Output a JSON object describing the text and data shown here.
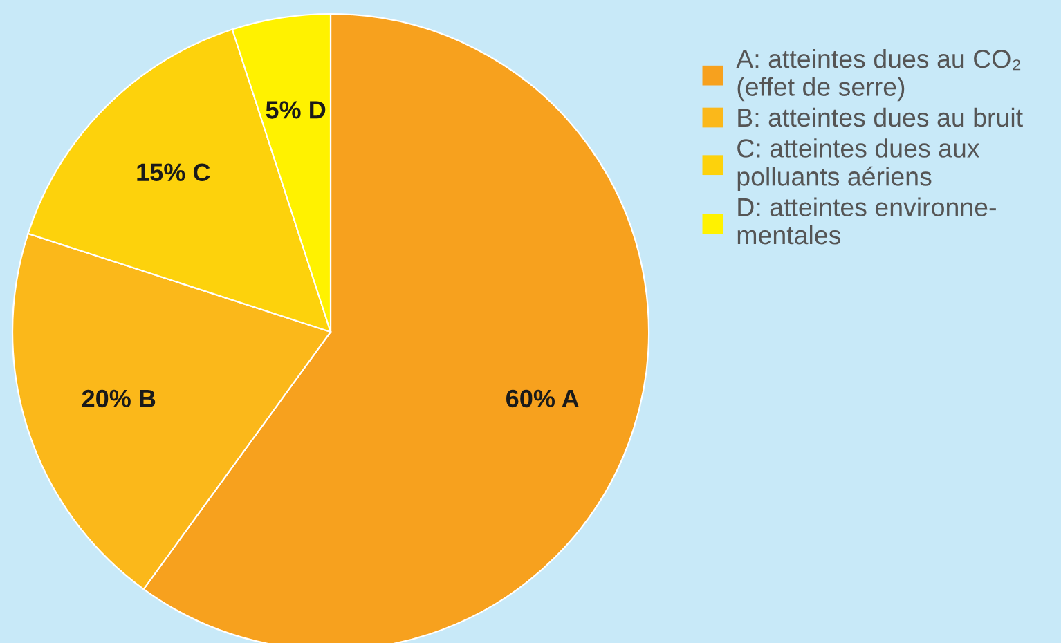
{
  "chart_data": {
    "type": "pie",
    "categories": [
      "A: atteintes dues au CO₂\n(effet de serre)",
      "B: atteintes dues au bruit",
      "C: atteintes dues aux\npolluants aériens",
      "D: atteintes environne-\nmentales"
    ],
    "values": [
      60,
      20,
      15,
      5
    ],
    "colors": [
      "#f7a11e",
      "#fbb81a",
      "#fdd20c",
      "#fff200"
    ],
    "value_labels": [
      "60% A",
      "20% B",
      "15% C",
      "5% D"
    ],
    "legend": "right"
  }
}
